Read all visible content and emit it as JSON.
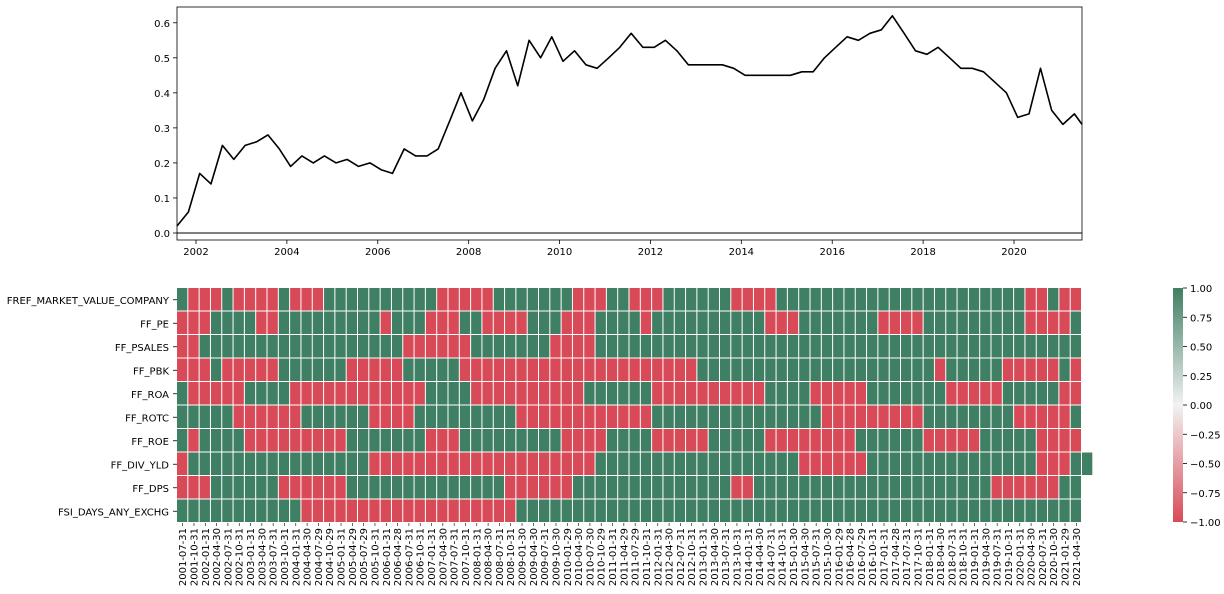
{
  "chart_data": [
    {
      "type": "line",
      "title": "",
      "xlabel": "",
      "ylabel": "",
      "xlim": [
        "2001-07-31",
        "2021-06-30"
      ],
      "ylim": [
        -0.02,
        0.645
      ],
      "x_ticks": [
        "2002",
        "2004",
        "2006",
        "2008",
        "2010",
        "2012",
        "2014",
        "2016",
        "2018",
        "2020"
      ],
      "y_ticks": [
        "0.0",
        "0.1",
        "0.2",
        "0.3",
        "0.4",
        "0.5",
        "0.6"
      ],
      "hline": 0.0,
      "line_color": "#000000",
      "series": [
        {
          "x": [
            "2001-07-31",
            "2001-10-31",
            "2002-01-31",
            "2002-04-30",
            "2002-07-31",
            "2002-10-31",
            "2003-01-31",
            "2003-04-30",
            "2003-07-31",
            "2003-10-31",
            "2004-01-31",
            "2004-04-30",
            "2004-07-31",
            "2004-10-29",
            "2005-01-31",
            "2005-04-29",
            "2005-07-29",
            "2005-10-31",
            "2006-01-31",
            "2006-04-28",
            "2006-07-31",
            "2006-10-31",
            "2007-01-31",
            "2007-04-30",
            "2007-07-31",
            "2007-10-31",
            "2008-01-31",
            "2008-04-30",
            "2008-07-31",
            "2008-10-31",
            "2009-01-30",
            "2009-04-30",
            "2009-07-31",
            "2009-10-30",
            "2010-01-29",
            "2010-04-30",
            "2010-07-30",
            "2010-10-29",
            "2011-01-31",
            "2011-04-29",
            "2011-07-29",
            "2011-10-31",
            "2012-01-31",
            "2012-04-30",
            "2012-07-31",
            "2012-10-31",
            "2013-01-31",
            "2013-04-30",
            "2013-07-31",
            "2013-10-31",
            "2014-01-31",
            "2014-04-30",
            "2014-07-31",
            "2014-10-31",
            "2015-01-30",
            "2015-04-30",
            "2015-07-31",
            "2015-10-30",
            "2016-01-29",
            "2016-04-29",
            "2016-07-29",
            "2016-10-31",
            "2017-01-31",
            "2017-04-28",
            "2017-07-31",
            "2017-10-31",
            "2018-01-31",
            "2018-04-30",
            "2018-07-31",
            "2018-10-31",
            "2019-01-31",
            "2019-04-30",
            "2019-07-31",
            "2019-10-31",
            "2020-01-31",
            "2020-04-30",
            "2020-07-31",
            "2020-10-30",
            "2021-01-29",
            "2021-04-30",
            "2021-06-30"
          ],
          "values": [
            0.02,
            0.06,
            0.17,
            0.14,
            0.25,
            0.21,
            0.25,
            0.26,
            0.28,
            0.24,
            0.19,
            0.22,
            0.2,
            0.22,
            0.2,
            0.21,
            0.19,
            0.2,
            0.18,
            0.17,
            0.24,
            0.22,
            0.22,
            0.24,
            0.32,
            0.4,
            0.32,
            0.38,
            0.47,
            0.52,
            0.42,
            0.55,
            0.5,
            0.56,
            0.49,
            0.52,
            0.48,
            0.47,
            0.5,
            0.53,
            0.57,
            0.53,
            0.53,
            0.55,
            0.52,
            0.48,
            0.48,
            0.48,
            0.48,
            0.47,
            0.45,
            0.45,
            0.45,
            0.45,
            0.45,
            0.46,
            0.46,
            0.5,
            0.53,
            0.56,
            0.55,
            0.57,
            0.58,
            0.62,
            0.57,
            0.52,
            0.51,
            0.53,
            0.5,
            0.47,
            0.47,
            0.46,
            0.43,
            0.4,
            0.33,
            0.34,
            0.47,
            0.35,
            0.31,
            0.34,
            0.31
          ]
        }
      ]
    },
    {
      "type": "heatmap",
      "title": "",
      "rows": [
        "FREF_MARKET_VALUE_COMPANY",
        "FF_PE",
        "FF_PSALES",
        "FF_PBK",
        "FF_ROA",
        "FF_ROTC",
        "FF_ROE",
        "FF_DIV_YLD",
        "FF_DPS",
        "FSI_DAYS_ANY_EXCHG"
      ],
      "x_tick_labels": [
        "2001-07-31",
        "2001-10-31",
        "2002-01-31",
        "2002-04-30",
        "2002-07-31",
        "2002-10-31",
        "2003-01-31",
        "2003-04-30",
        "2003-07-31",
        "2003-10-31",
        "2004-01-31",
        "2004-04-30",
        "2004-07-29",
        "2004-10-29",
        "2005-01-31",
        "2005-04-29",
        "2005-07-29",
        "2005-10-31",
        "2006-01-31",
        "2006-04-28",
        "2006-07-31",
        "2006-10-31",
        "2007-01-31",
        "2007-04-30",
        "2007-07-31",
        "2007-10-31",
        "2008-01-31",
        "2008-04-30",
        "2008-07-31",
        "2008-10-31",
        "2009-01-30",
        "2009-04-30",
        "2009-07-31",
        "2009-10-30",
        "2010-01-29",
        "2010-04-30",
        "2010-07-30",
        "2010-10-29",
        "2011-01-31",
        "2011-04-29",
        "2011-07-29",
        "2011-10-31",
        "2012-01-31",
        "2012-04-30",
        "2012-07-31",
        "2012-10-31",
        "2013-01-31",
        "2013-04-30",
        "2013-07-31",
        "2013-10-31",
        "2014-01-31",
        "2014-04-30",
        "2014-07-31",
        "2014-10-31",
        "2015-01-30",
        "2015-04-30",
        "2015-07-31",
        "2015-10-30",
        "2016-01-29",
        "2016-04-28",
        "2016-07-29",
        "2016-10-31",
        "2017-01-31",
        "2017-04-28",
        "2017-07-31",
        "2017-10-31",
        "2018-01-31",
        "2018-04-30",
        "2018-07-31",
        "2018-10-31",
        "2019-01-31",
        "2019-04-30",
        "2019-07-31",
        "2019-10-31",
        "2020-01-31",
        "2020-04-30",
        "2020-07-31",
        "2020-10-30",
        "2021-01-29",
        "2021-04-30"
      ],
      "values": [
        [
          1,
          -1,
          -1,
          -1,
          1,
          -1,
          -1,
          -1,
          -1,
          1,
          -1,
          -1,
          -1,
          1,
          1,
          1,
          1,
          1,
          1,
          1,
          1,
          1,
          1,
          -1,
          -1,
          -1,
          -1,
          -1,
          1,
          1,
          1,
          1,
          1,
          1,
          1,
          -1,
          -1,
          -1,
          1,
          1,
          -1,
          -1,
          -1,
          1,
          1,
          1,
          1,
          1,
          1,
          -1,
          -1,
          -1,
          -1,
          1,
          1,
          1,
          1,
          1,
          1,
          1,
          1,
          1,
          1,
          1,
          1,
          1,
          1,
          1,
          1,
          1,
          1,
          1,
          1,
          1,
          1,
          -1,
          -1,
          1,
          -1,
          -1
        ],
        [
          -1,
          -1,
          -1,
          1,
          1,
          1,
          1,
          -1,
          -1,
          1,
          1,
          1,
          1,
          1,
          1,
          1,
          1,
          1,
          -1,
          1,
          1,
          1,
          -1,
          -1,
          -1,
          1,
          1,
          -1,
          -1,
          -1,
          -1,
          1,
          1,
          1,
          -1,
          -1,
          -1,
          1,
          1,
          1,
          1,
          -1,
          1,
          1,
          1,
          1,
          1,
          1,
          1,
          1,
          1,
          1,
          -1,
          -1,
          -1,
          1,
          1,
          1,
          1,
          1,
          1,
          1,
          -1,
          -1,
          -1,
          -1,
          1,
          1,
          1,
          1,
          1,
          1,
          1,
          1,
          1,
          -1,
          -1,
          -1,
          -1,
          1
        ],
        [
          -1,
          -1,
          1,
          1,
          1,
          1,
          1,
          1,
          1,
          1,
          1,
          1,
          1,
          1,
          1,
          1,
          1,
          1,
          1,
          1,
          -1,
          -1,
          -1,
          -1,
          -1,
          -1,
          1,
          1,
          1,
          1,
          1,
          1,
          1,
          -1,
          -1,
          -1,
          -1,
          1,
          1,
          1,
          1,
          1,
          1,
          1,
          1,
          1,
          1,
          1,
          1,
          1,
          1,
          1,
          1,
          1,
          1,
          1,
          1,
          1,
          1,
          1,
          1,
          1,
          1,
          1,
          1,
          1,
          1,
          1,
          1,
          1,
          1,
          1,
          1,
          1,
          1,
          1,
          1,
          1,
          1,
          1
        ],
        [
          -1,
          -1,
          -1,
          1,
          -1,
          -1,
          -1,
          -1,
          -1,
          1,
          1,
          1,
          1,
          1,
          1,
          -1,
          -1,
          -1,
          -1,
          -1,
          1,
          1,
          1,
          1,
          1,
          -1,
          -1,
          -1,
          -1,
          -1,
          -1,
          -1,
          -1,
          -1,
          -1,
          -1,
          -1,
          -1,
          -1,
          -1,
          -1,
          -1,
          -1,
          -1,
          -1,
          -1,
          1,
          1,
          1,
          1,
          1,
          1,
          1,
          1,
          1,
          1,
          1,
          1,
          1,
          1,
          1,
          1,
          1,
          1,
          1,
          1,
          1,
          -1,
          1,
          1,
          1,
          1,
          1,
          -1,
          -1,
          -1,
          -1,
          -1,
          1,
          -1
        ],
        [
          1,
          -1,
          -1,
          -1,
          -1,
          -1,
          1,
          1,
          1,
          1,
          -1,
          -1,
          -1,
          -1,
          -1,
          -1,
          -1,
          -1,
          -1,
          -1,
          -1,
          -1,
          1,
          1,
          1,
          1,
          -1,
          -1,
          -1,
          -1,
          -1,
          -1,
          -1,
          -1,
          -1,
          -1,
          1,
          1,
          1,
          1,
          1,
          1,
          -1,
          -1,
          -1,
          -1,
          -1,
          -1,
          -1,
          -1,
          -1,
          -1,
          1,
          1,
          1,
          1,
          -1,
          -1,
          -1,
          -1,
          -1,
          1,
          1,
          1,
          1,
          1,
          1,
          1,
          -1,
          -1,
          -1,
          -1,
          -1,
          1,
          1,
          1,
          1,
          1,
          -1,
          -1
        ],
        [
          1,
          1,
          1,
          1,
          1,
          -1,
          -1,
          -1,
          -1,
          -1,
          -1,
          1,
          1,
          1,
          1,
          1,
          1,
          -1,
          -1,
          -1,
          -1,
          1,
          1,
          1,
          1,
          1,
          1,
          1,
          1,
          1,
          -1,
          -1,
          -1,
          -1,
          -1,
          -1,
          -1,
          -1,
          -1,
          -1,
          -1,
          -1,
          1,
          1,
          1,
          1,
          1,
          1,
          1,
          1,
          1,
          1,
          1,
          1,
          1,
          1,
          1,
          -1,
          -1,
          -1,
          -1,
          -1,
          -1,
          -1,
          -1,
          -1,
          1,
          1,
          1,
          1,
          1,
          1,
          1,
          1,
          -1,
          -1,
          -1,
          -1,
          -1,
          1
        ],
        [
          1,
          -1,
          1,
          1,
          1,
          1,
          -1,
          -1,
          -1,
          -1,
          -1,
          -1,
          -1,
          -1,
          -1,
          1,
          1,
          1,
          1,
          1,
          1,
          1,
          -1,
          -1,
          -1,
          1,
          1,
          1,
          1,
          1,
          1,
          1,
          1,
          1,
          -1,
          -1,
          -1,
          -1,
          1,
          1,
          1,
          1,
          -1,
          -1,
          -1,
          -1,
          -1,
          1,
          1,
          1,
          1,
          1,
          -1,
          -1,
          -1,
          -1,
          -1,
          -1,
          -1,
          -1,
          1,
          1,
          1,
          1,
          1,
          1,
          -1,
          -1,
          -1,
          -1,
          -1,
          1,
          1,
          1,
          1,
          1,
          -1,
          -1,
          -1,
          -1
        ],
        [
          -1,
          1,
          1,
          1,
          1,
          1,
          1,
          1,
          1,
          1,
          1,
          1,
          1,
          1,
          1,
          1,
          1,
          -1,
          -1,
          -1,
          -1,
          -1,
          -1,
          -1,
          -1,
          -1,
          -1,
          -1,
          -1,
          -1,
          -1,
          -1,
          -1,
          -1,
          -1,
          -1,
          -1,
          1,
          1,
          1,
          1,
          1,
          1,
          1,
          1,
          1,
          1,
          1,
          1,
          1,
          1,
          1,
          1,
          1,
          1,
          -1,
          -1,
          -1,
          -1,
          -1,
          -1,
          1,
          1,
          1,
          1,
          1,
          1,
          1,
          1,
          1,
          1,
          1,
          1,
          1,
          1,
          1,
          -1,
          -1,
          -1,
          1,
          1
        ],
        [
          -1,
          -1,
          -1,
          1,
          1,
          1,
          1,
          1,
          1,
          -1,
          -1,
          -1,
          -1,
          -1,
          -1,
          1,
          1,
          1,
          1,
          1,
          1,
          1,
          1,
          1,
          1,
          1,
          1,
          1,
          1,
          -1,
          -1,
          -1,
          -1,
          -1,
          -1,
          1,
          1,
          1,
          1,
          1,
          1,
          1,
          1,
          1,
          1,
          1,
          1,
          1,
          1,
          -1,
          -1,
          1,
          1,
          1,
          1,
          1,
          1,
          1,
          1,
          1,
          1,
          1,
          1,
          1,
          1,
          1,
          1,
          1,
          1,
          1,
          1,
          1,
          -1,
          -1,
          -1,
          -1,
          -1,
          -1,
          1,
          1
        ],
        [
          1,
          1,
          1,
          1,
          1,
          1,
          1,
          1,
          1,
          1,
          1,
          -1,
          -1,
          -1,
          -1,
          -1,
          -1,
          -1,
          -1,
          -1,
          -1,
          -1,
          -1,
          -1,
          -1,
          -1,
          -1,
          -1,
          -1,
          -1,
          1,
          1,
          1,
          1,
          1,
          1,
          1,
          1,
          1,
          1,
          1,
          1,
          1,
          1,
          1,
          1,
          1,
          1,
          1,
          1,
          1,
          1,
          1,
          1,
          1,
          1,
          1,
          1,
          1,
          1,
          1,
          1,
          1,
          1,
          1,
          1,
          1,
          1,
          1,
          1,
          1,
          1,
          1,
          1,
          1,
          1,
          1,
          1,
          1,
          1
        ]
      ],
      "colorbar": {
        "min": -1.0,
        "max": 1.0,
        "ticks": [
          "1.00",
          "0.75",
          "0.50",
          "0.25",
          "0.00",
          "−0.25",
          "−0.50",
          "−0.75",
          "−1.00"
        ],
        "color_low": "#d84a57",
        "color_mid": "#f2f2f2",
        "color_high": "#3f7f63"
      }
    }
  ]
}
